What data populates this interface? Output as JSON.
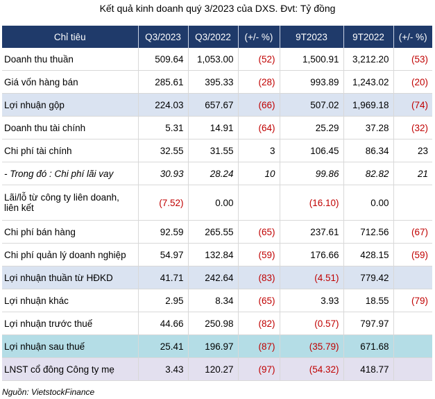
{
  "title": "Kết quả kinh doanh quý 3/2023 của DXS. Đvt: Tỷ đồng",
  "headers": [
    "Chỉ tiêu",
    "Q3/2023",
    "Q3/2022",
    "(+/- %)",
    "9T2023",
    "9T2022",
    "(+/- %)"
  ],
  "rows": [
    [
      "Doanh thu thuần",
      "509.64",
      "1,053.00",
      "(52)",
      "1,500.91",
      "3,212.20",
      "(53)"
    ],
    [
      "Giá vốn hàng bán",
      "285.61",
      "395.33",
      "(28)",
      "993.89",
      "1,243.02",
      "(20)"
    ],
    [
      "Lợi nhuận gộp",
      "224.03",
      "657.67",
      "(66)",
      "507.02",
      "1,969.18",
      "(74)"
    ],
    [
      "Doanh thu tài chính",
      "5.31",
      "14.91",
      "(64)",
      "25.29",
      "37.28",
      "(32)"
    ],
    [
      "Chi phí tài chính",
      "32.55",
      "31.55",
      "3",
      "106.45",
      "86.34",
      "23"
    ],
    [
      "- Trong đó : Chi phí lãi vay",
      "30.93",
      "28.24",
      "10",
      "99.86",
      "82.82",
      "21"
    ],
    [
      "Lãi/lỗ từ công ty liên doanh, liên kết",
      "(7.52)",
      "0.00",
      "",
      "(16.10)",
      "0.00",
      ""
    ],
    [
      "Chi phí bán hàng",
      "92.59",
      "265.55",
      "(65)",
      "237.61",
      "712.56",
      "(67)"
    ],
    [
      "Chi phí quản lý doanh nghiệp",
      "54.97",
      "132.84",
      "(59)",
      "176.66",
      "428.15",
      "(59)"
    ],
    [
      "Lợi nhuận thuần từ HĐKD",
      "41.71",
      "242.64",
      "(83)",
      "(4.51)",
      "779.42",
      ""
    ],
    [
      "Lợi nhuận khác",
      "2.95",
      "8.34",
      "(65)",
      "3.93",
      "18.55",
      "(79)"
    ],
    [
      "Lợi nhuận trước thuế",
      "44.66",
      "250.98",
      "(82)",
      "(0.57)",
      "797.97",
      ""
    ],
    [
      "Lợi nhuận sau thuế",
      "25.41",
      "196.97",
      "(87)",
      "(35.79)",
      "671.68",
      ""
    ],
    [
      "LNST cổ đông Công ty mẹ",
      "3.43",
      "120.27",
      "(97)",
      "(54.32)",
      "418.77",
      ""
    ]
  ],
  "source": "Nguồn: VietstockFinance",
  "colors": {
    "header_bg": "#1f3a6a",
    "negative_text": "#c00000",
    "highlight_blue": "#dae3f1",
    "highlight_cyan": "#b4dde6",
    "highlight_purple": "#e3e0ef"
  }
}
